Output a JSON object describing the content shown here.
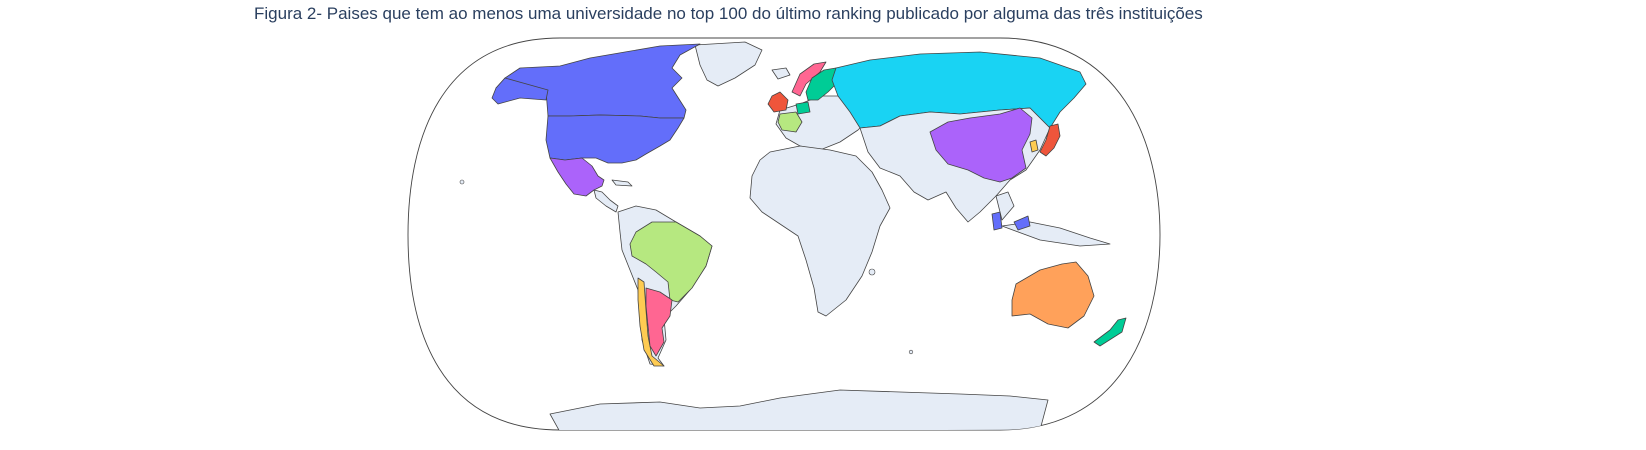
{
  "figure": {
    "title": "Figura 2- Paises que tem ao menos uma universidade no top 100 do último ranking publicado por alguma das três instituições"
  },
  "map": {
    "projection": "natural earth",
    "land_color": "#e5ecf6",
    "ocean_color": "#ffffff",
    "border_color": "#444444",
    "highlighted_countries": [
      {
        "name": "Canada",
        "color": "#636efa"
      },
      {
        "name": "United States",
        "color": "#636efa"
      },
      {
        "name": "Singapore",
        "color": "#636efa"
      },
      {
        "name": "Mexico",
        "color": "#ab63fa"
      },
      {
        "name": "China",
        "color": "#ab63fa"
      },
      {
        "name": "Brazil",
        "color": "#b6e880"
      },
      {
        "name": "France",
        "color": "#b6e880"
      },
      {
        "name": "Argentina",
        "color": "#ff6692"
      },
      {
        "name": "Norway",
        "color": "#ff6692"
      },
      {
        "name": "Chile",
        "color": "#fecb52"
      },
      {
        "name": "South Korea",
        "color": "#fecb52"
      },
      {
        "name": "United Kingdom",
        "color": "#ef553b"
      },
      {
        "name": "Japan",
        "color": "#ef553b"
      },
      {
        "name": "Sweden",
        "color": "#00cc96"
      },
      {
        "name": "Finland",
        "color": "#00cc96"
      },
      {
        "name": "Netherlands",
        "color": "#00cc96"
      },
      {
        "name": "New Zealand",
        "color": "#00cc96"
      },
      {
        "name": "Russia",
        "color": "#19d3f3"
      },
      {
        "name": "Australia",
        "color": "#ffa15a"
      },
      {
        "name": "Germany",
        "color": "#e5ecf6"
      }
    ]
  }
}
